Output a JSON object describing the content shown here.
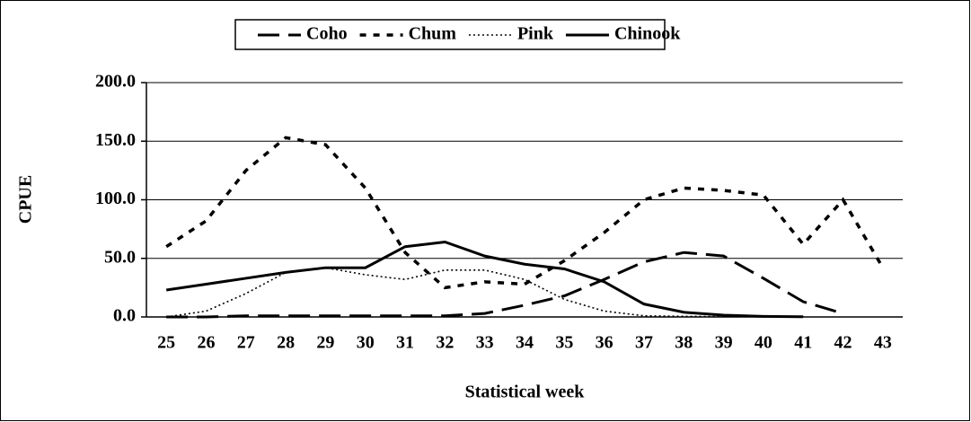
{
  "chart_data": {
    "type": "line",
    "legend": "top",
    "x_label": "Statistical week",
    "y_label": "CPUE",
    "x": [
      25,
      26,
      27,
      28,
      29,
      30,
      31,
      32,
      33,
      34,
      35,
      36,
      37,
      38,
      39,
      40,
      41,
      42,
      43
    ],
    "xlim": [
      24.5,
      43.5
    ],
    "ylim": [
      0,
      200
    ],
    "yticks": [
      {
        "value": 0,
        "label": "0.0"
      },
      {
        "value": 50,
        "label": "50.0"
      },
      {
        "value": 100,
        "label": "100.0"
      },
      {
        "value": 150,
        "label": "150.0"
      },
      {
        "value": 200,
        "label": "200.0"
      }
    ],
    "grid": true,
    "series": [
      {
        "name": "Coho",
        "color": "#000000",
        "style": "long-dash",
        "values": [
          0,
          0,
          1,
          1,
          1,
          1,
          1,
          1,
          3,
          10,
          18,
          32,
          47,
          55,
          52,
          33,
          13,
          3,
          null
        ]
      },
      {
        "name": "Chum",
        "color": "#000000",
        "style": "dash",
        "values": [
          60,
          82,
          125,
          153,
          147,
          110,
          55,
          25,
          30,
          28,
          48,
          72,
          100,
          110,
          108,
          104,
          62,
          100,
          42
        ]
      },
      {
        "name": "Pink",
        "color": "#000000",
        "style": "dot",
        "values": [
          0,
          5,
          20,
          38,
          42,
          36,
          32,
          40,
          40,
          32,
          15,
          5,
          1,
          0.5,
          0.3,
          0.2,
          0.2,
          null,
          null
        ]
      },
      {
        "name": "Chinook",
        "color": "#000000",
        "style": "solid",
        "values": [
          23,
          28,
          33,
          38,
          42,
          42,
          60,
          64,
          52,
          45,
          41,
          30,
          11,
          4,
          1.5,
          0.5,
          0.2,
          null,
          null
        ]
      }
    ]
  }
}
